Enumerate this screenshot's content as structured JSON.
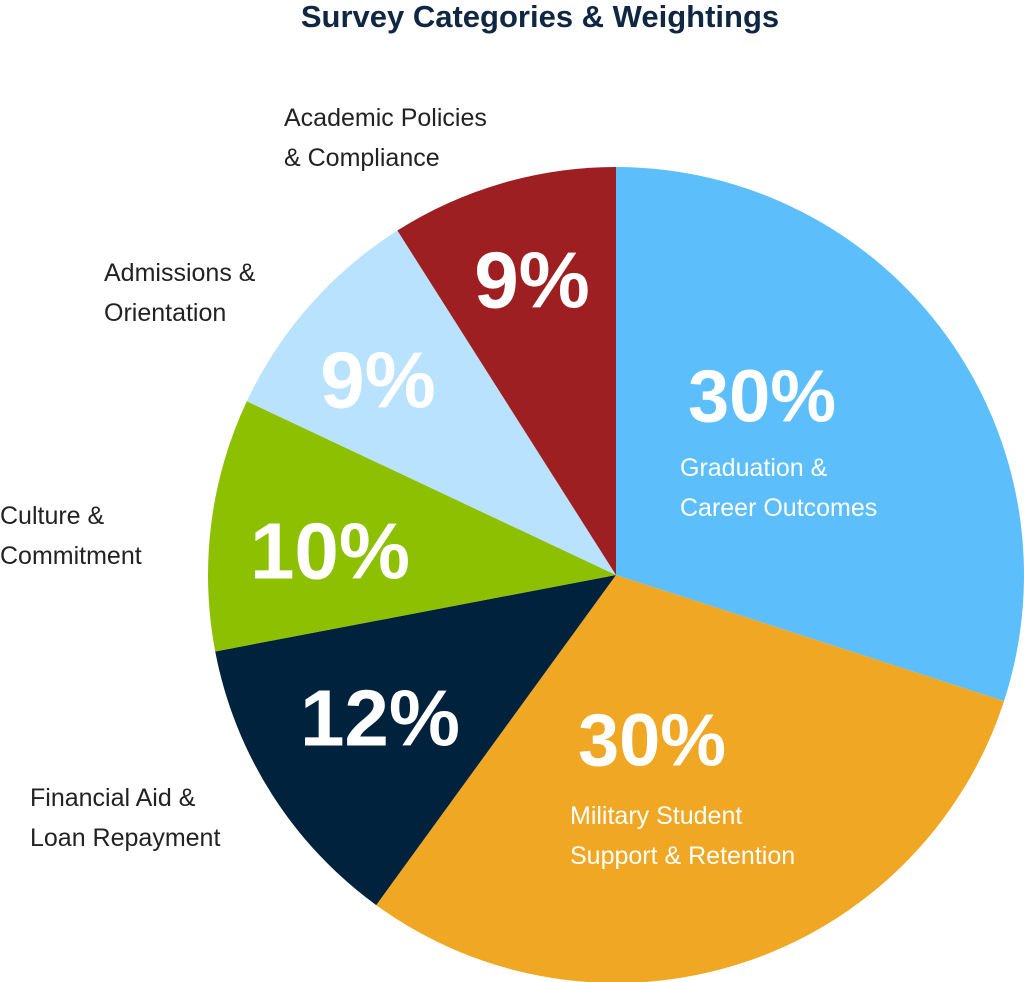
{
  "chart_data": {
    "type": "pie",
    "title": "Survey Categories & Weightings",
    "start_angle_deg": 0,
    "direction": "clockwise",
    "slices": [
      {
        "label_lines": [
          "Graduation &",
          "Career Outcomes"
        ],
        "value": 30,
        "value_label": "30%",
        "color": "#5cbffb",
        "value_color": "#ffffff",
        "label_color": "#ffffff"
      },
      {
        "label_lines": [
          "Military Student",
          "Support & Retention"
        ],
        "value": 30,
        "value_label": "30%",
        "color": "#efa724",
        "value_color": "#ffffff",
        "label_color": "#ffffff"
      },
      {
        "label_lines": [
          "Financial Aid &",
          "Loan Repayment"
        ],
        "value": 12,
        "value_label": "12%",
        "color": "#00223c",
        "value_color": "#ffffff",
        "label_color": "#222222"
      },
      {
        "label_lines": [
          "Culture &",
          "Commitment"
        ],
        "value": 10,
        "value_label": "10%",
        "color": "#8dc000",
        "value_color": "#ffffff",
        "label_color": "#222222"
      },
      {
        "label_lines": [
          "Admissions &",
          "Orientation"
        ],
        "value": 9,
        "value_label": "9%",
        "color": "#b8e2fd",
        "value_color": "#ffffff",
        "label_color": "#222222"
      },
      {
        "label_lines": [
          "Academic Policies",
          "& Compliance"
        ],
        "value": 9,
        "value_label": "9%",
        "color": "#9e1f22",
        "value_color": "#ffffff",
        "label_color": "#222222"
      }
    ]
  }
}
